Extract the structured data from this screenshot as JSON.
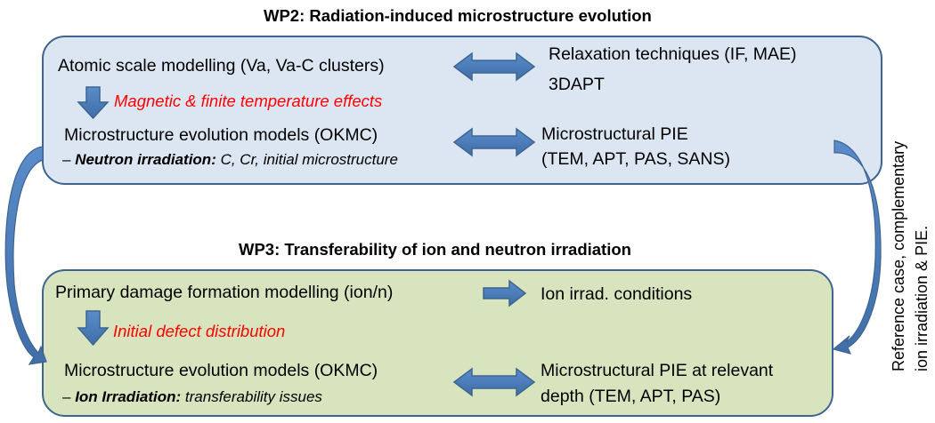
{
  "colors": {
    "wp2_fill": "#dce6f2",
    "wp3_fill": "#d7e4bd",
    "border": "#3d6590",
    "arrow": "#4f81bd",
    "highlight": "#ff0000"
  },
  "wp2": {
    "title": "WP2: Radiation-induced microstructure evolution",
    "atomic": "Atomic scale modelling (Va, Va-C clusters)",
    "relax1": "Relaxation techniques (IF, MAE)",
    "relax2": "3DAPT",
    "effects": "Magnetic & finite temperature effects",
    "okmc": "Microstructure evolution models (OKMC)",
    "sub_dash": "– ",
    "sub_bold": "Neutron irradiation:",
    "sub_rest": " C, Cr, initial microstructure",
    "pie1": "Microstructural PIE",
    "pie2": "(TEM, APT, PAS, SANS)"
  },
  "wp3": {
    "title": "WP3: Transferability of ion and neutron irradiation",
    "primary": "Primary damage formation modelling (ion/n)",
    "ion_cond": "Ion irrad. conditions",
    "defect": "Initial defect distribution",
    "okmc": "Microstructure evolution models (OKMC)",
    "sub_dash": "– ",
    "sub_bold": "Ion Irradiation:",
    "sub_rest": " transferability issues",
    "pie1": "Microstructural PIE at relevant",
    "pie2": "depth (TEM, APT, PAS)"
  },
  "side_note": {
    "line1": "Reference case, complementary",
    "line2": "ion irradiation & PIE."
  }
}
